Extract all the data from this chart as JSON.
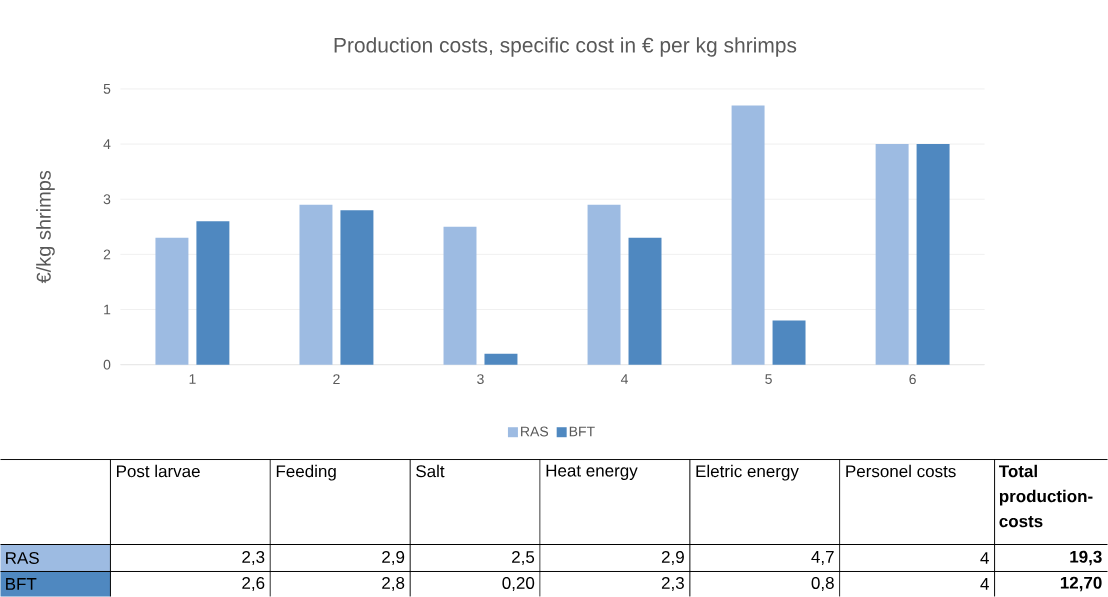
{
  "chart_data": {
    "type": "bar",
    "title": "Production costs, specific cost in € per kg shrimps",
    "ylabel": "€/kg shrimps",
    "categories": [
      "1",
      "2",
      "3",
      "4",
      "5",
      "6"
    ],
    "series": [
      {
        "name": "RAS",
        "color": "#9dbbe2",
        "values": [
          2.3,
          2.9,
          2.5,
          2.9,
          4.7,
          4
        ]
      },
      {
        "name": "BFT",
        "color": "#4f88c0",
        "values": [
          2.6,
          2.8,
          0.2,
          2.3,
          0.8,
          4
        ]
      }
    ],
    "ylim": [
      0,
      5
    ],
    "yticks": [
      0,
      1,
      2,
      3,
      4,
      5
    ],
    "grid": "y",
    "legend": "bottom",
    "annotations": [
      "Post larvae",
      "Feeding",
      "Salt",
      "Heat energy",
      "Eletric energy",
      "Personel costs",
      "Total production-costs",
      "2,3",
      "2,9",
      "2,5",
      "2,9",
      "4,7",
      "4",
      "19,3",
      "2,6",
      "2,8",
      "0,20",
      "2,3",
      "0,8",
      "4",
      "12,70"
    ]
  }
}
